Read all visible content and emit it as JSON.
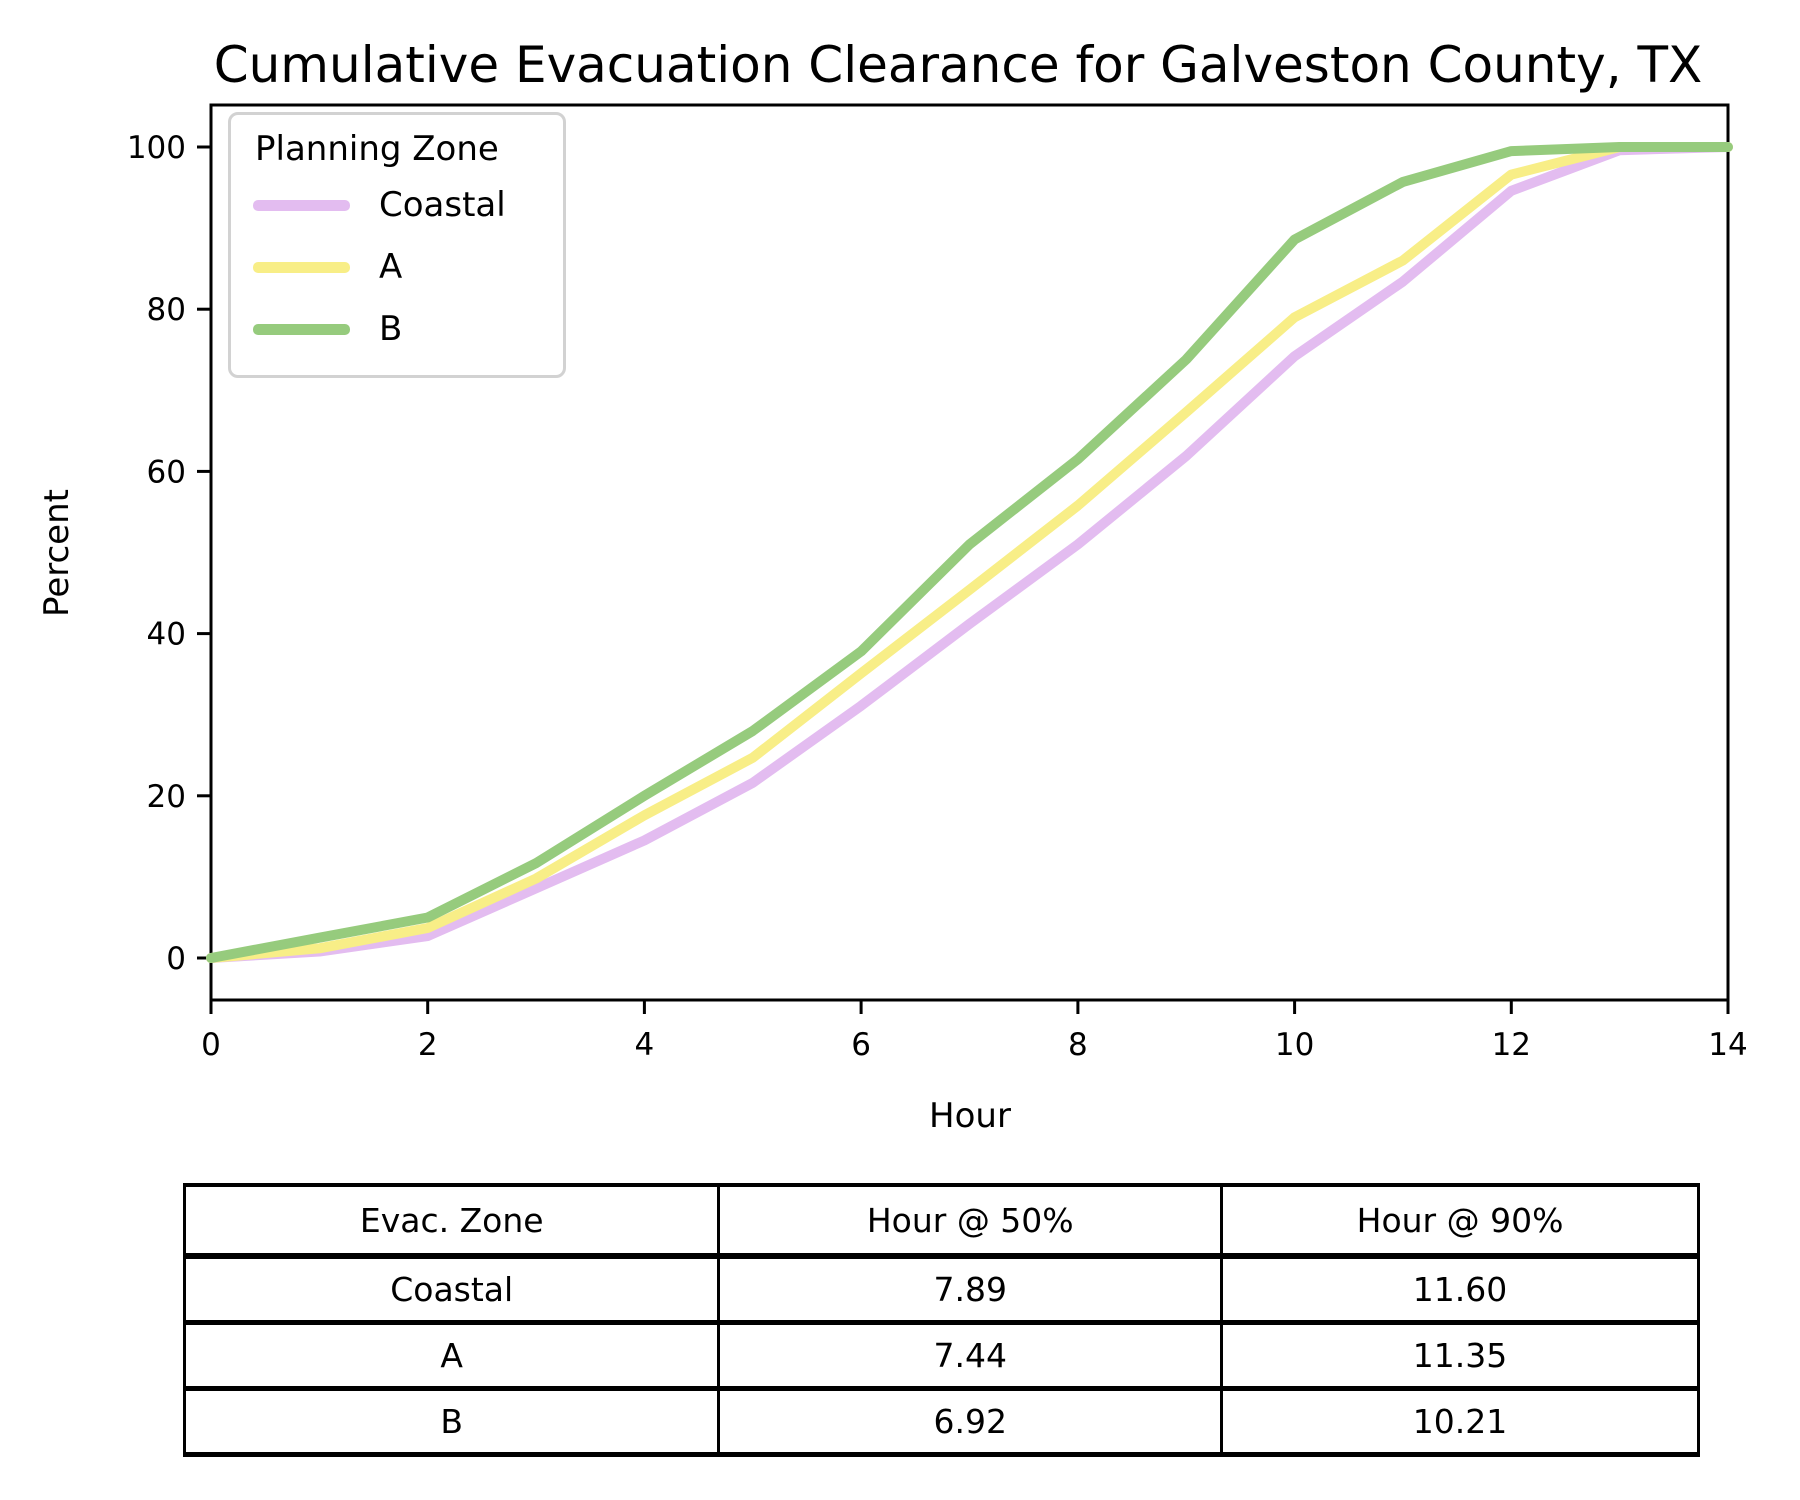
{
  "chart_data": {
    "type": "line",
    "title": "Cumulative Evacuation Clearance for Galveston County, TX",
    "xlabel": "Hour",
    "ylabel": "Percent",
    "legend_title": "Planning Zone",
    "legend_position": "upper left",
    "xlim": [
      0,
      14
    ],
    "ylim": [
      0,
      100
    ],
    "grid": false,
    "x_ticks": [
      0,
      2,
      4,
      6,
      8,
      10,
      12,
      14
    ],
    "y_ticks": [
      0,
      20,
      40,
      60,
      80,
      100
    ],
    "x": [
      0,
      1,
      2,
      3,
      4,
      5,
      6,
      7,
      8,
      9,
      10,
      11,
      12,
      13,
      14
    ],
    "series": [
      {
        "name": "Coastal",
        "color": "#E3BCF0",
        "values": [
          0,
          0.8,
          2.7,
          8.6,
          14.5,
          21.6,
          31.1,
          41.2,
          51.0,
          61.9,
          74.2,
          83.4,
          94.6,
          99.6,
          100
        ]
      },
      {
        "name": "A",
        "color": "#F8EE87",
        "values": [
          0,
          1.2,
          3.7,
          9.8,
          17.6,
          24.7,
          35.1,
          45.4,
          55.8,
          67.3,
          79.0,
          86.0,
          96.6,
          100,
          100
        ]
      },
      {
        "name": "B",
        "color": "#96CB7D",
        "values": [
          0,
          2.5,
          5.0,
          11.7,
          20.0,
          28.0,
          37.8,
          51.0,
          61.5,
          73.8,
          88.6,
          95.7,
          99.5,
          100,
          100
        ]
      }
    ]
  },
  "table": {
    "headers": [
      "Evac. Zone",
      "Hour @ 50%",
      "Hour @ 90%"
    ],
    "rows": [
      [
        "Coastal",
        "7.89",
        "11.60"
      ],
      [
        "A",
        "7.44",
        "11.35"
      ],
      [
        "B",
        "6.92",
        "10.21"
      ]
    ]
  }
}
